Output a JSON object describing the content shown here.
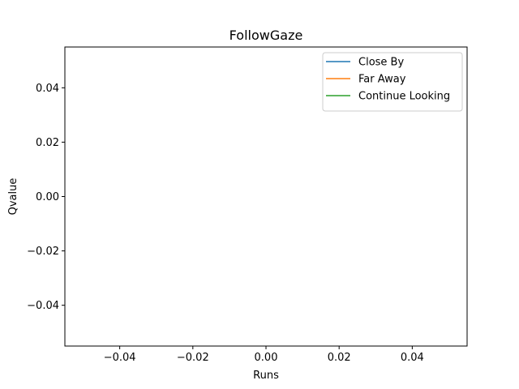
{
  "chart_data": {
    "type": "line",
    "title": "FollowGaze",
    "xlabel": "Runs",
    "ylabel": "Qvalue",
    "xlim": [
      -0.055,
      0.055
    ],
    "ylim": [
      -0.055,
      0.055
    ],
    "x_ticks": [
      -0.04,
      -0.02,
      0.0,
      0.02,
      0.04
    ],
    "x_tick_labels": [
      "−0.04",
      "−0.02",
      "0.00",
      "0.02",
      "0.04"
    ],
    "y_ticks": [
      -0.04,
      -0.02,
      0.0,
      0.02,
      0.04
    ],
    "y_tick_labels": [
      "−0.04",
      "−0.02",
      "0.00",
      "0.02",
      "0.04"
    ],
    "grid": false,
    "legend": {
      "placement": "upper-right",
      "entries": [
        {
          "name": "Close By",
          "color": "#1f77b4"
        },
        {
          "name": "Far Away",
          "color": "#ff7f0e"
        },
        {
          "name": "Continue Looking",
          "color": "#2ca02c"
        }
      ]
    },
    "series": [
      {
        "name": "Close By",
        "x": [],
        "y": [],
        "color": "#1f77b4"
      },
      {
        "name": "Far Away",
        "x": [],
        "y": [],
        "color": "#ff7f0e"
      },
      {
        "name": "Continue Looking",
        "x": [],
        "y": [],
        "color": "#2ca02c"
      }
    ]
  }
}
